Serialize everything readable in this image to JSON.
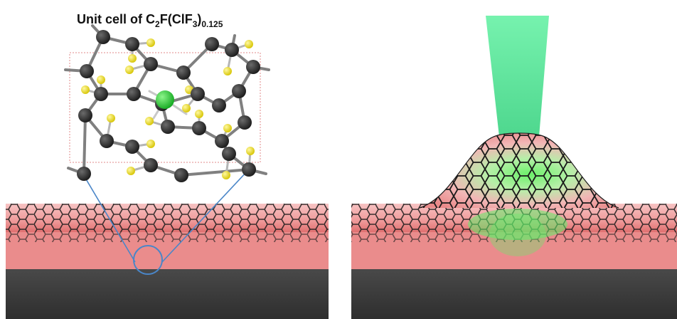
{
  "unit_cell_title": {
    "prefix": "Unit cell of C",
    "sub_2": "2",
    "mid": "F(ClF",
    "sub_3": "3",
    "close": ")",
    "sub_frac": "0.125"
  },
  "colors": {
    "carbon_atom": "#2b2b2b",
    "fluorine_atom": "#f2e21a",
    "chlorine_atom": "#1fbf2a",
    "bond": "#808080",
    "unit_cell_box": "#e08a8a",
    "film_top": "#f0a0a0",
    "film_edge": "#e27a7a",
    "substrate": "#3a3a3a",
    "laser_beam": "#3ee08a",
    "zoom_circle": "#4a86c8"
  },
  "icons": [
    "hexagonal-lattice-icon",
    "laser-beam-icon",
    "zoom-circle-icon"
  ]
}
